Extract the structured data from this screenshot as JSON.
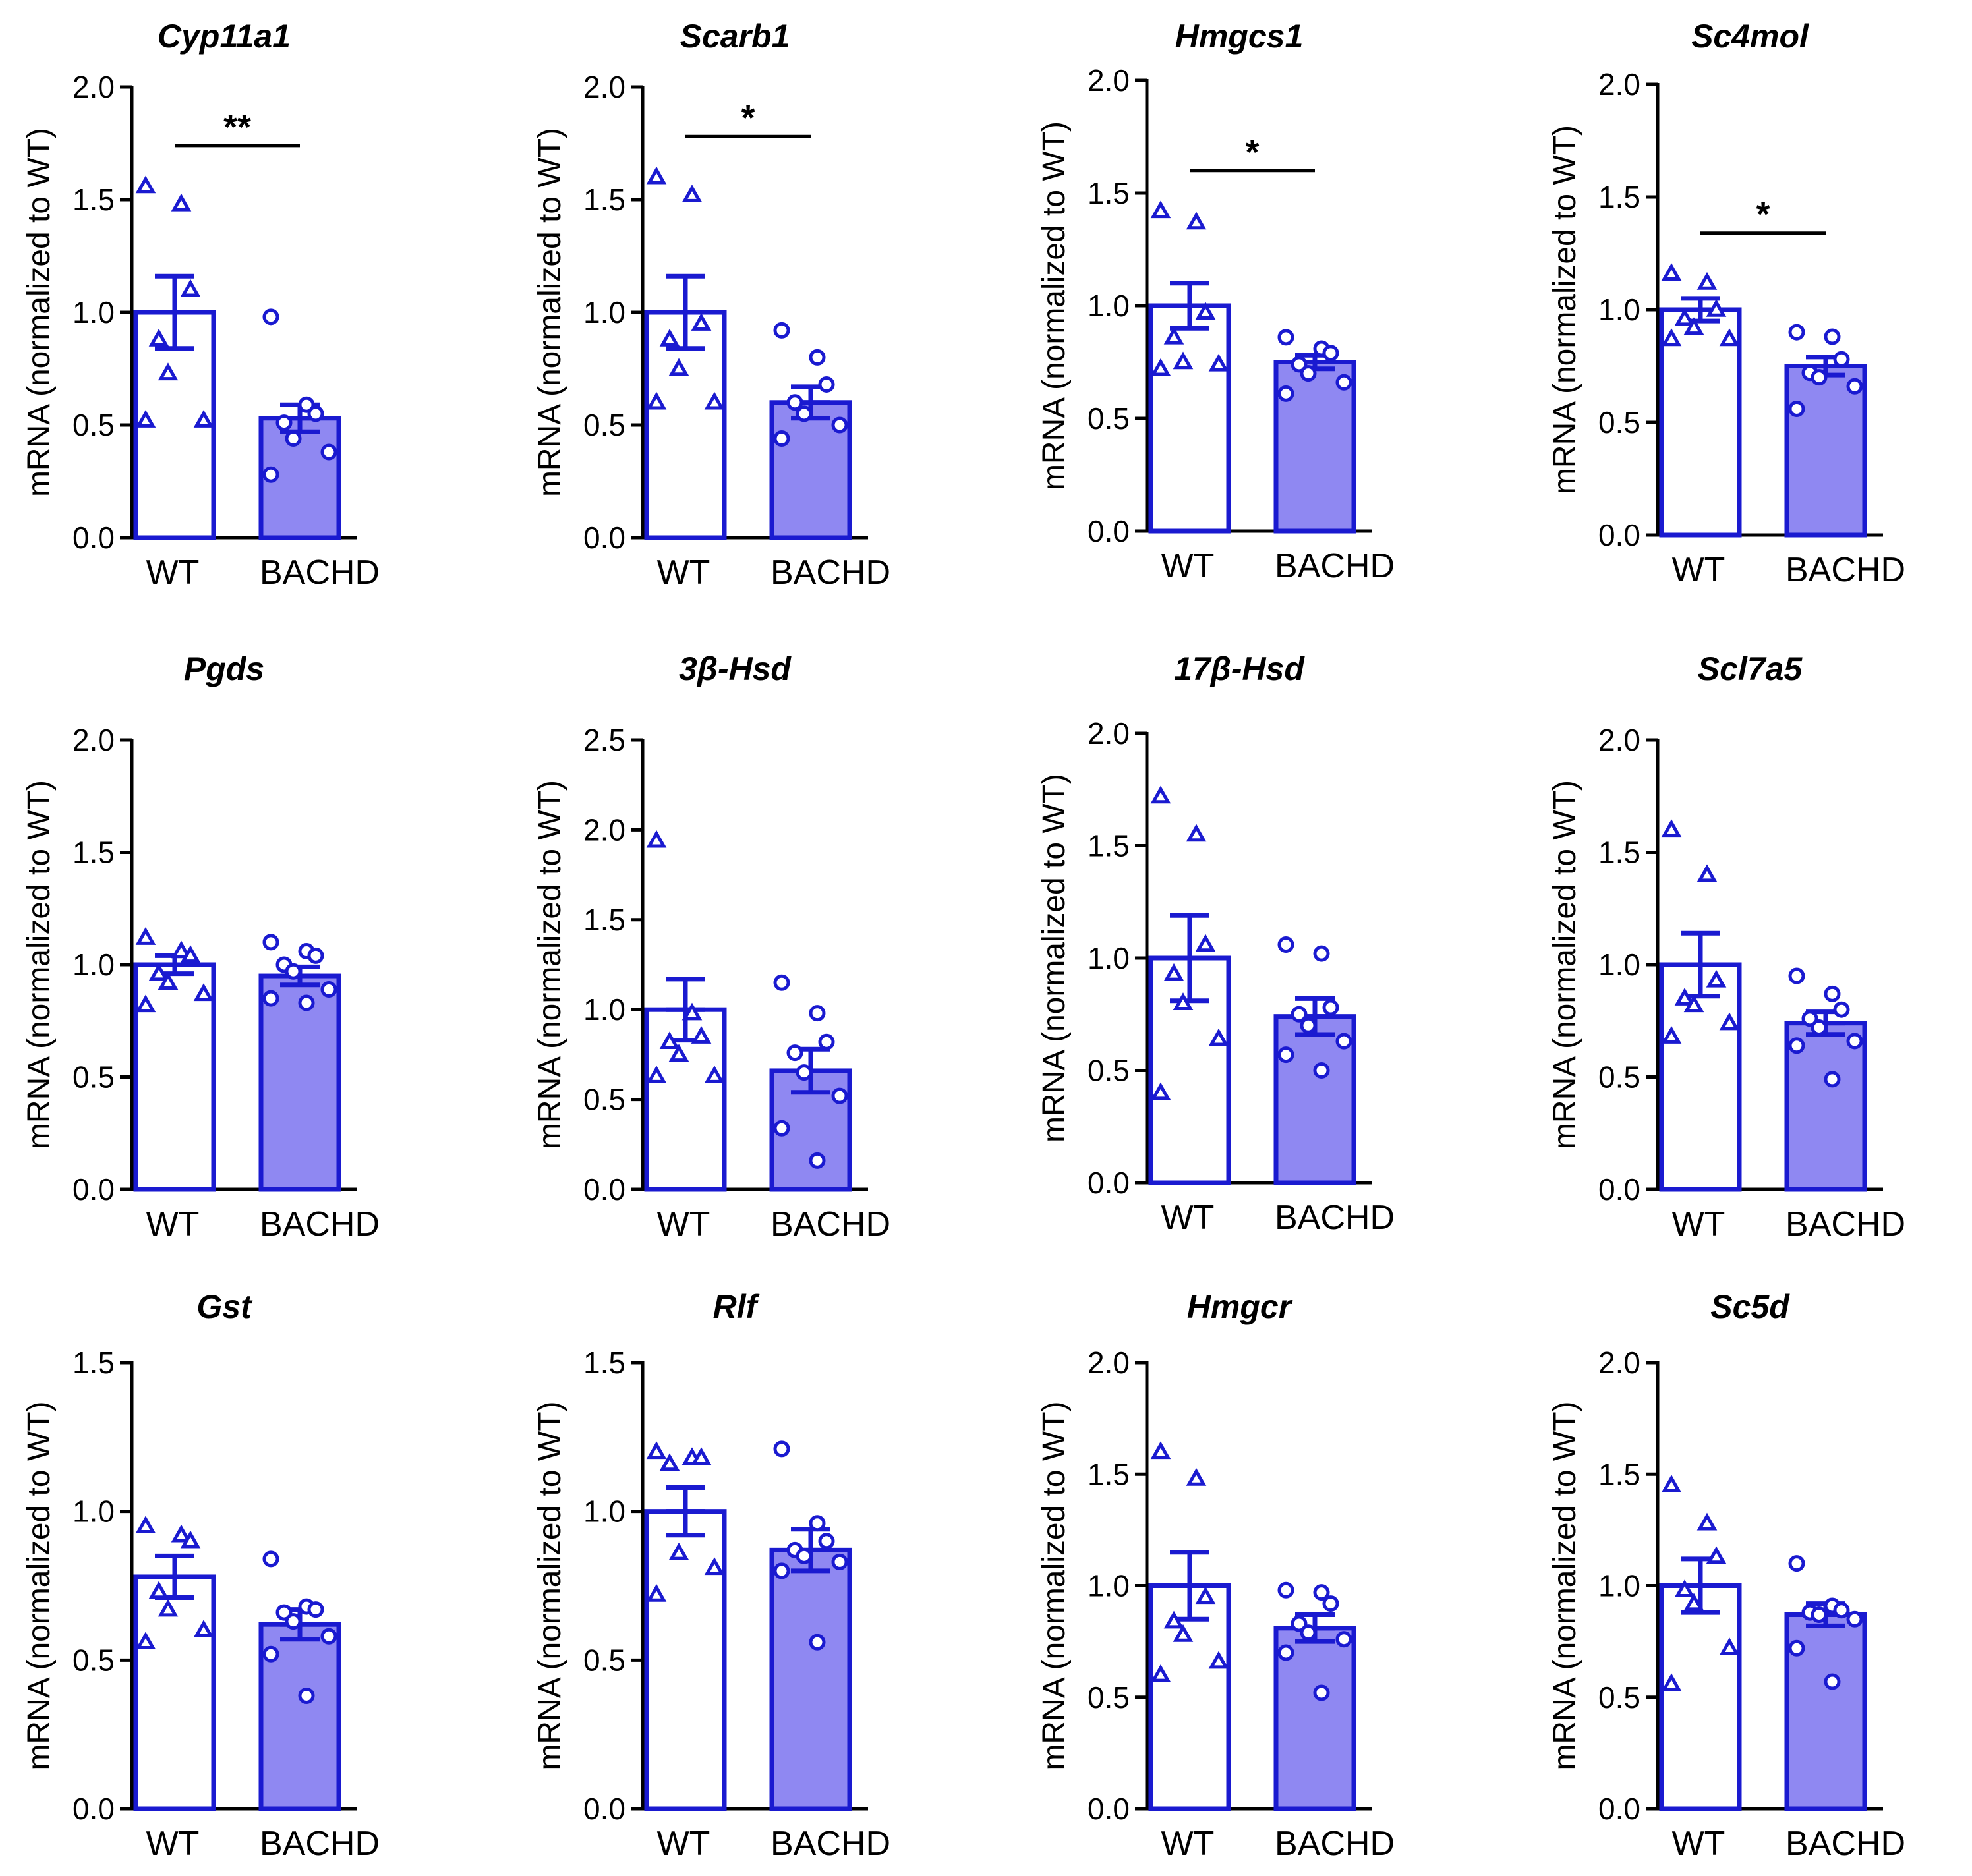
{
  "colors": {
    "accent": "#1a1ad0",
    "bachd_fill": "#8f88f2",
    "wt_fill": "#ffffff"
  },
  "chart_data": [
    {
      "type": "bar",
      "title": "Cyp11a1",
      "ylabel": "mRNA (normalized to WT)",
      "categories": [
        "WT",
        "BACHD"
      ],
      "ylim": [
        0,
        2.0
      ],
      "ticks": [
        "0.0",
        "0.5",
        "1.0",
        "1.5",
        "2.0"
      ],
      "means": [
        1.0,
        0.53
      ],
      "sem": [
        0.16,
        0.06
      ],
      "points": [
        [
          1.56,
          1.48,
          1.1,
          0.88,
          0.73,
          0.52,
          0.52
        ],
        [
          0.98,
          0.59,
          0.55,
          0.51,
          0.44,
          0.38,
          0.28
        ]
      ],
      "significance": "**"
    },
    {
      "type": "bar",
      "title": "Scarb1",
      "ylabel": "mRNA (normalized to WT)",
      "categories": [
        "WT",
        "BACHD"
      ],
      "ylim": [
        0,
        2.0
      ],
      "ticks": [
        "0.0",
        "0.5",
        "1.0",
        "1.5",
        "2.0"
      ],
      "means": [
        1.0,
        0.6
      ],
      "sem": [
        0.16,
        0.07
      ],
      "points": [
        [
          1.6,
          1.52,
          0.95,
          0.88,
          0.75,
          0.6,
          0.6
        ],
        [
          0.92,
          0.8,
          0.68,
          0.6,
          0.55,
          0.5,
          0.44
        ]
      ],
      "significance": "*"
    },
    {
      "type": "bar",
      "title": "Hmgcs1",
      "ylabel": "mRNA (normalized to WT)",
      "categories": [
        "WT",
        "BACHD"
      ],
      "ylim": [
        0,
        2.0
      ],
      "ticks": [
        "0.0",
        "0.5",
        "1.0",
        "1.5",
        "2.0"
      ],
      "means": [
        1.0,
        0.75
      ],
      "sem": [
        0.1,
        0.03
      ],
      "points": [
        [
          1.42,
          1.37,
          0.97,
          0.86,
          0.75,
          0.74,
          0.72
        ],
        [
          0.86,
          0.81,
          0.79,
          0.74,
          0.7,
          0.66,
          0.61
        ]
      ],
      "significance": "*"
    },
    {
      "type": "bar",
      "title": "Sc4mol",
      "ylabel": "mRNA (normalized to WT)",
      "categories": [
        "WT",
        "BACHD"
      ],
      "ylim": [
        0,
        2.0
      ],
      "ticks": [
        "0.0",
        "0.5",
        "1.0",
        "1.5",
        "2.0"
      ],
      "means": [
        1.0,
        0.75
      ],
      "sem": [
        0.05,
        0.04
      ],
      "points": [
        [
          1.16,
          1.12,
          1.0,
          0.96,
          0.92,
          0.87,
          0.87
        ],
        [
          0.9,
          0.88,
          0.78,
          0.72,
          0.7,
          0.66,
          0.56
        ]
      ],
      "significance": "*"
    },
    {
      "type": "bar",
      "title": "Pgds",
      "ylabel": "mRNA (normalized to WT)",
      "categories": [
        "WT",
        "BACHD"
      ],
      "ylim": [
        0,
        2.0
      ],
      "ticks": [
        "0.0",
        "0.5",
        "1.0",
        "1.5",
        "2.0"
      ],
      "means": [
        1.0,
        0.95
      ],
      "sem": [
        0.04,
        0.04
      ],
      "points": [
        [
          1.12,
          1.06,
          1.04,
          0.96,
          0.92,
          0.87,
          0.82
        ],
        [
          1.1,
          1.06,
          1.04,
          1.0,
          0.97,
          0.89,
          0.85,
          0.83
        ]
      ],
      "significance": ""
    },
    {
      "type": "bar",
      "title": "3β-Hsd",
      "ylabel": "mRNA (normalized to WT)",
      "categories": [
        "WT",
        "BACHD"
      ],
      "ylim": [
        0,
        2.5
      ],
      "ticks": [
        "0.0",
        "0.5",
        "1.0",
        "1.5",
        "2.0",
        "2.5"
      ],
      "means": [
        1.0,
        0.66
      ],
      "sem": [
        0.17,
        0.12
      ],
      "points": [
        [
          1.94,
          0.98,
          0.85,
          0.82,
          0.75,
          0.63,
          0.63
        ],
        [
          1.15,
          0.98,
          0.82,
          0.76,
          0.65,
          0.52,
          0.34,
          0.16
        ]
      ],
      "significance": ""
    },
    {
      "type": "bar",
      "title": "17β-Hsd",
      "ylabel": "mRNA (normalized to WT)",
      "categories": [
        "WT",
        "BACHD"
      ],
      "ylim": [
        0,
        2.0
      ],
      "ticks": [
        "0.0",
        "0.5",
        "1.0",
        "1.5",
        "2.0"
      ],
      "means": [
        1.0,
        0.74
      ],
      "sem": [
        0.19,
        0.08
      ],
      "points": [
        [
          1.72,
          1.55,
          1.06,
          0.93,
          0.8,
          0.64,
          0.4
        ],
        [
          1.06,
          1.02,
          0.78,
          0.75,
          0.7,
          0.63,
          0.57,
          0.5
        ]
      ],
      "significance": ""
    },
    {
      "type": "bar",
      "title": "Scl7a5",
      "ylabel": "mRNA (normalized to WT)",
      "categories": [
        "WT",
        "BACHD"
      ],
      "ylim": [
        0,
        2.0
      ],
      "ticks": [
        "0.0",
        "0.5",
        "1.0",
        "1.5",
        "2.0"
      ],
      "means": [
        1.0,
        0.74
      ],
      "sem": [
        0.14,
        0.05
      ],
      "points": [
        [
          1.6,
          1.4,
          0.93,
          0.85,
          0.82,
          0.74,
          0.68
        ],
        [
          0.95,
          0.87,
          0.8,
          0.76,
          0.72,
          0.66,
          0.64,
          0.49
        ]
      ],
      "significance": ""
    },
    {
      "type": "bar",
      "title": "Gst",
      "ylabel": "mRNA (normalized to WT)",
      "categories": [
        "WT",
        "BACHD"
      ],
      "ylim": [
        0,
        1.5
      ],
      "ticks": [
        "0.0",
        "0.5",
        "1.0",
        "1.5"
      ],
      "means": [
        0.78,
        0.62
      ],
      "sem": [
        0.07,
        0.05
      ],
      "points": [
        [
          0.95,
          0.92,
          0.9,
          0.73,
          0.67,
          0.6,
          0.56
        ],
        [
          0.84,
          0.68,
          0.67,
          0.66,
          0.63,
          0.58,
          0.52,
          0.38
        ]
      ],
      "significance": ""
    },
    {
      "type": "bar",
      "title": "Rlf",
      "ylabel": "mRNA (normalized to WT)",
      "categories": [
        "WT",
        "BACHD"
      ],
      "ylim": [
        0,
        1.5
      ],
      "ticks": [
        "0.0",
        "0.5",
        "1.0",
        "1.5"
      ],
      "means": [
        1.0,
        0.87
      ],
      "sem": [
        0.08,
        0.07
      ],
      "points": [
        [
          1.2,
          1.18,
          1.18,
          1.16,
          0.86,
          0.81,
          0.72
        ],
        [
          1.21,
          0.96,
          0.9,
          0.87,
          0.85,
          0.83,
          0.8,
          0.56
        ]
      ],
      "significance": ""
    },
    {
      "type": "bar",
      "title": "Hmgcr",
      "ylabel": "mRNA (normalized to WT)",
      "categories": [
        "WT",
        "BACHD"
      ],
      "ylim": [
        0,
        2.0
      ],
      "ticks": [
        "0.0",
        "0.5",
        "1.0",
        "1.5",
        "2.0"
      ],
      "means": [
        1.0,
        0.81
      ],
      "sem": [
        0.15,
        0.06
      ],
      "points": [
        [
          1.6,
          1.48,
          0.95,
          0.84,
          0.78,
          0.66,
          0.6
        ],
        [
          0.98,
          0.97,
          0.92,
          0.83,
          0.79,
          0.76,
          0.7,
          0.52
        ]
      ],
      "significance": ""
    },
    {
      "type": "bar",
      "title": "Sc5d",
      "ylabel": "mRNA (normalized to WT)",
      "categories": [
        "WT",
        "BACHD"
      ],
      "ylim": [
        0,
        2.0
      ],
      "ticks": [
        "0.0",
        "0.5",
        "1.0",
        "1.5",
        "2.0"
      ],
      "means": [
        1.0,
        0.87
      ],
      "sem": [
        0.12,
        0.05
      ],
      "points": [
        [
          1.45,
          1.28,
          1.13,
          0.98,
          0.92,
          0.72,
          0.56
        ],
        [
          1.1,
          0.91,
          0.89,
          0.88,
          0.87,
          0.85,
          0.72,
          0.57
        ]
      ],
      "significance": ""
    }
  ]
}
